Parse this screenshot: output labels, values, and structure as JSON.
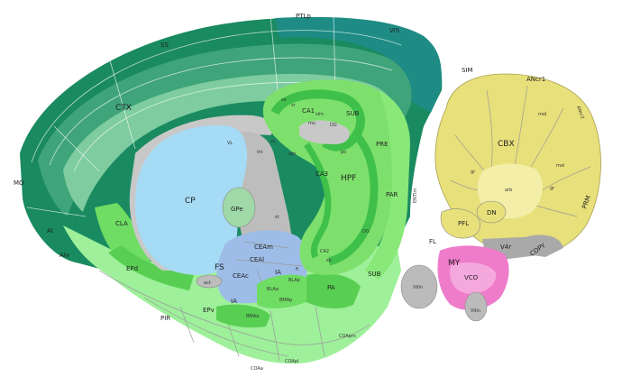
{
  "colors": {
    "ctx_dark": "#137a55",
    "ctx_mid": "#3fa479",
    "ctx_light": "#7ecca0",
    "ctx_teal": "#1e8c85",
    "hpf": "#7ee06c",
    "hpf_dark": "#3fc04a",
    "olf": "#9ef09a",
    "cp": "#a6dbf5",
    "amyg": "#9dbde8",
    "fiber": "#c8c8c8",
    "cbx": "#e8e07a",
    "cbx_light": "#f3eea8",
    "medulla": "#f090d0",
    "gray": "#bbbbbb"
  },
  "labels": {
    "ptlp": "PTLp",
    "ss": "SS",
    "vis": "VIS",
    "ctx": "CTX",
    "mo": "MO",
    "ai": "AI",
    "aiv": "AIv",
    "cla": "CLA",
    "ep": "EPd",
    "epv": "EPv",
    "cp": "CP",
    "gpe": "GPe",
    "fs": "FS",
    "vl": "VL",
    "cea_m": "CEAm",
    "cea_l": "CEAl",
    "cea_c": "CEAc",
    "ia1": "IA",
    "ia2": "IA",
    "bla_a": "BLAa",
    "bla_p": "BLAp",
    "bma_a": "BMAa",
    "bma_p": "BMAp",
    "pa": "PA",
    "act": "act",
    "pir": "PIR",
    "coa_a": "COAa",
    "coa_pl": "COApl",
    "coa_pm": "COApm",
    "hpf": "HPF",
    "ca3": "CA3",
    "ca1": "CA1",
    "ca2": "CA2",
    "dg": "DG",
    "dg2": "DG",
    "sub": "SUB",
    "sub2": "SUB",
    "pre": "PRE",
    "par": "PAR",
    "entl": "ENTlm",
    "sim": "SIM",
    "an1": "ANcr1",
    "an2": "ANcr2",
    "cbx": "CBX",
    "prm": "PRM",
    "copy": "COPY",
    "pfl": "PFL",
    "dn": "DN",
    "fl": "FL",
    "v4r": "V4r",
    "my": "MY",
    "vco": "VCO",
    "viiin": "VIIIn",
    "viiin2": "VIIIn",
    "int": "int",
    "opt": "opt",
    "st": "st",
    "so": "so",
    "sr": "sr",
    "slm": "slm",
    "mo2": "mo",
    "po": "po",
    "sp": "sp",
    "ec": "ec",
    "fi": "fi",
    "gr": "gr",
    "ar": "arb",
    "gr2": "gr",
    "mol": "mol",
    "mol2": "mol"
  }
}
